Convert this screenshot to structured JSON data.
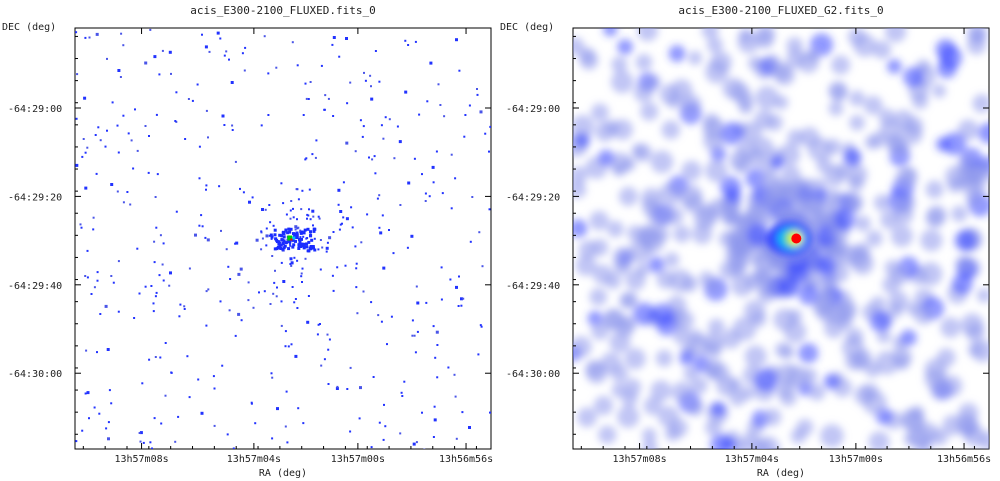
{
  "chart_data": [
    {
      "type": "heatmap",
      "title": "acis_E300-2100_FLUXED.fits_0",
      "xlabel": "RA (deg)",
      "ylabel": "DEC (deg)",
      "x_ticks": [
        "13h57m08s",
        "13h57m04s",
        "13h57m00s",
        "13h56m56s"
      ],
      "y_ticks": [
        "-64:29:00",
        "-64:29:20",
        "-64:29:40",
        "-64:30:00"
      ],
      "style": "raw-counts",
      "source": {
        "ra": "13h57m02.5s",
        "dec": "-64:29:30"
      },
      "colormap": [
        "#ffffff",
        "#3344ff",
        "#00c0ff",
        "#00d000",
        "#ffff00",
        "#ff0000"
      ]
    },
    {
      "type": "heatmap",
      "title": "acis_E300-2100_FLUXED_G2.fits_0",
      "xlabel": "RA (deg)",
      "ylabel": "DEC (deg)",
      "x_ticks": [
        "13h57m08s",
        "13h57m04s",
        "13h57m00s",
        "13h56m56s"
      ],
      "y_ticks": [
        "-64:29:00",
        "-64:29:20",
        "-64:29:40",
        "-64:30:00"
      ],
      "style": "gaussian-smoothed",
      "source": {
        "ra": "13h57m02.5s",
        "dec": "-64:29:30"
      },
      "colormap": [
        "#ffffff",
        "#9aa4ee",
        "#3344ff",
        "#00c0ff",
        "#00d000",
        "#ffff00",
        "#ff0000"
      ]
    }
  ]
}
